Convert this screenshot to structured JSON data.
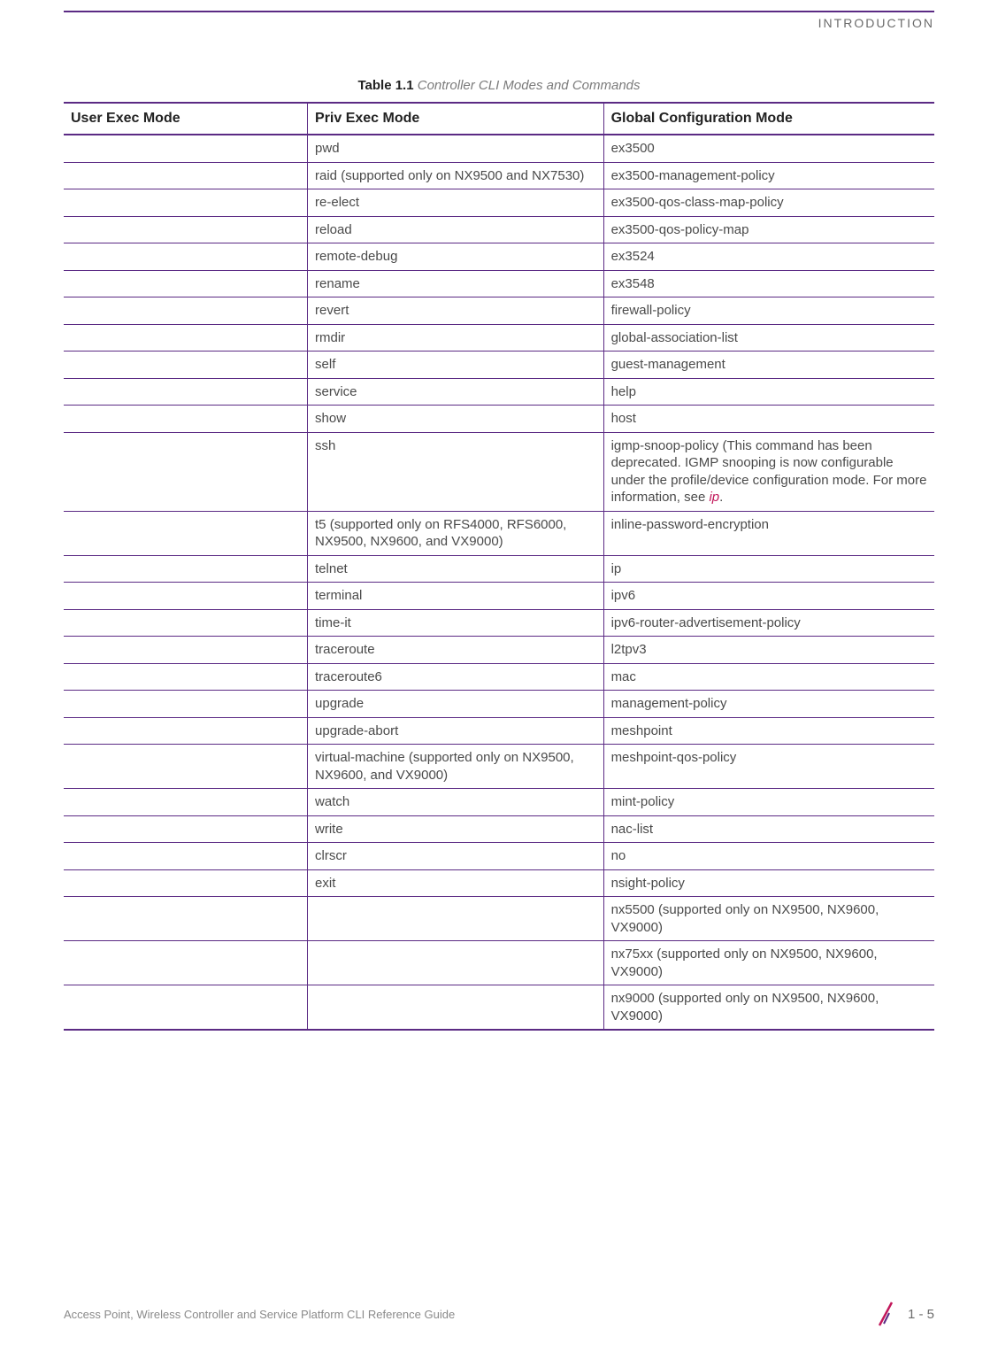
{
  "header": {
    "section": "INTRODUCTION"
  },
  "caption": {
    "bold": "Table 1.1",
    "italic": "Controller CLI Modes and Commands"
  },
  "columns": {
    "col1": "User Exec Mode",
    "col2": "Priv Exec Mode",
    "col3": "Global Configuration Mode"
  },
  "rows": [
    {
      "c1": "",
      "c2": "pwd",
      "c3": "ex3500"
    },
    {
      "c1": "",
      "c2": "raid (supported only on NX9500 and NX7530)",
      "c3": "ex3500-management-policy"
    },
    {
      "c1": "",
      "c2": "re-elect",
      "c3": "ex3500-qos-class-map-policy"
    },
    {
      "c1": "",
      "c2": "reload",
      "c3": "ex3500-qos-policy-map"
    },
    {
      "c1": "",
      "c2": "remote-debug",
      "c3": "ex3524"
    },
    {
      "c1": "",
      "c2": "rename",
      "c3": "ex3548"
    },
    {
      "c1": "",
      "c2": "revert",
      "c3": "firewall-policy"
    },
    {
      "c1": "",
      "c2": "rmdir",
      "c3": "global-association-list"
    },
    {
      "c1": "",
      "c2": "self",
      "c3": "guest-management"
    },
    {
      "c1": "",
      "c2": "service",
      "c3": "help"
    },
    {
      "c1": "",
      "c2": "show",
      "c3": "host"
    },
    {
      "c1": "",
      "c2": "ssh",
      "c3_pre": "igmp-snoop-policy (This command has been deprecated. IGMP snooping is now configurable under the profile/device configuration mode. For more information, see ",
      "c3_link": "ip",
      "c3_post": "."
    },
    {
      "c1": "",
      "c2": "t5 (supported only on RFS4000, RFS6000, NX9500, NX9600, and VX9000)",
      "c3": "inline-password-encryption"
    },
    {
      "c1": "",
      "c2": "telnet",
      "c3": "ip"
    },
    {
      "c1": "",
      "c2": "terminal",
      "c3": "ipv6"
    },
    {
      "c1": "",
      "c2": "time-it",
      "c3": "ipv6-router-advertisement-policy"
    },
    {
      "c1": "",
      "c2": "traceroute",
      "c3": "l2tpv3"
    },
    {
      "c1": "",
      "c2": "traceroute6",
      "c3": "mac"
    },
    {
      "c1": "",
      "c2": "upgrade",
      "c3": "management-policy"
    },
    {
      "c1": "",
      "c2": "upgrade-abort",
      "c3": "meshpoint"
    },
    {
      "c1": "",
      "c2": "virtual-machine (supported only on NX9500, NX9600, and VX9000)",
      "c3": "meshpoint-qos-policy"
    },
    {
      "c1": "",
      "c2": "watch",
      "c3": "mint-policy"
    },
    {
      "c1": "",
      "c2": "write",
      "c3": "nac-list"
    },
    {
      "c1": "",
      "c2": "clrscr",
      "c3": "no"
    },
    {
      "c1": "",
      "c2": "exit",
      "c3": "nsight-policy"
    },
    {
      "c1": "",
      "c2": "",
      "c3": "nx5500 (supported only on NX9500, NX9600, VX9000)"
    },
    {
      "c1": "",
      "c2": "",
      "c3": "nx75xx (supported only on NX9500, NX9600, VX9000)"
    },
    {
      "c1": "",
      "c2": "",
      "c3": "nx9000 (supported only on NX9500, NX9600, VX9000)"
    }
  ],
  "footer": {
    "left": "Access Point, Wireless Controller and Service Platform CLI Reference Guide",
    "page": "1 - 5"
  },
  "colors": {
    "rule": "#5b2a84",
    "link": "#c2185b",
    "text": "#4a4a4a",
    "header_text": "#6b6b6b"
  }
}
